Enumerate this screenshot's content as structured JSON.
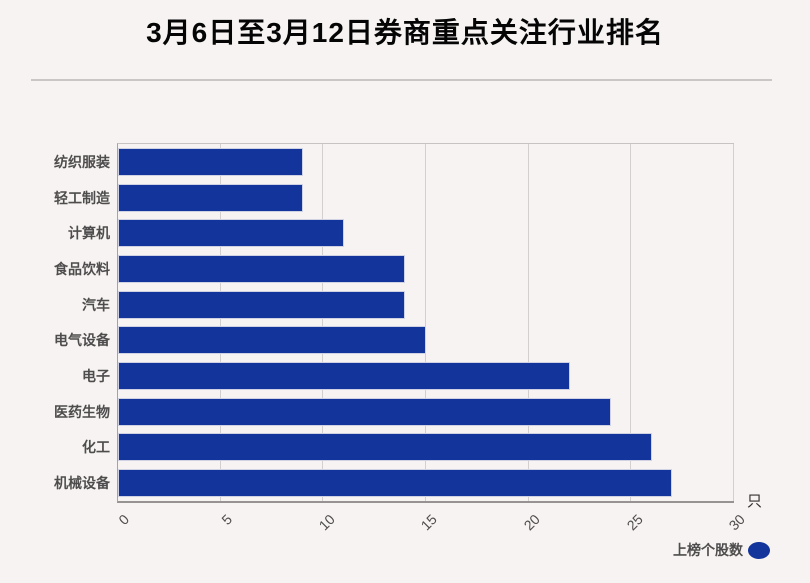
{
  "title": "3月6日至3月12日券商重点关注行业排名",
  "unit_label": "只",
  "legend": {
    "label": "上榜个股数"
  },
  "colors": {
    "bar": "#12349b",
    "background": "#f6f3f2",
    "grid": "#d2cfce",
    "label": "#4e4c4c",
    "title": "#050505"
  },
  "chart_data": {
    "type": "bar",
    "orientation": "horizontal",
    "title": "3月6日至3月12日券商重点关注行业排名",
    "categories": [
      "纺织服装",
      "轻工制造",
      "计算机",
      "食品饮料",
      "汽车",
      "电气设备",
      "电子",
      "医药生物",
      "化工",
      "机械设备"
    ],
    "values": [
      9,
      9,
      11,
      14,
      14,
      15,
      22,
      24,
      26,
      27
    ],
    "xlabel": "只",
    "ylabel": "",
    "xlim": [
      0,
      30
    ],
    "xticks": [
      0,
      5,
      10,
      15,
      20,
      25,
      30
    ],
    "xtick_rotation": 45,
    "grid": true,
    "legend_entries": [
      "上榜个股数"
    ],
    "legend_position": "bottom-right",
    "bar_color": "#12349b"
  }
}
